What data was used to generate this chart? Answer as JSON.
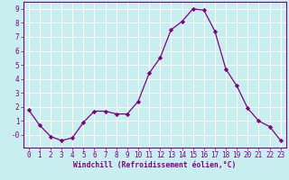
{
  "x": [
    0,
    1,
    2,
    3,
    4,
    5,
    6,
    7,
    8,
    9,
    10,
    11,
    12,
    13,
    14,
    15,
    16,
    17,
    18,
    19,
    20,
    21,
    22,
    23
  ],
  "y": [
    1.8,
    0.7,
    -0.1,
    -0.4,
    -0.2,
    0.9,
    1.7,
    1.7,
    1.5,
    1.5,
    2.4,
    4.4,
    5.5,
    7.5,
    8.1,
    9.0,
    8.9,
    7.4,
    4.7,
    3.5,
    1.9,
    1.0,
    0.6,
    -0.4
  ],
  "line_color": "#800080",
  "marker": "D",
  "marker_size": 2.2,
  "xlabel": "Windchill (Refroidissement éolien,°C)",
  "xlim": [
    -0.5,
    23.5
  ],
  "ylim": [
    -0.9,
    9.5
  ],
  "yticks": [
    0,
    1,
    2,
    3,
    4,
    5,
    6,
    7,
    8,
    9
  ],
  "ytick_labels": [
    "-0",
    "1",
    "2",
    "3",
    "4",
    "5",
    "6",
    "7",
    "8",
    "9"
  ],
  "xticks": [
    0,
    1,
    2,
    3,
    4,
    5,
    6,
    7,
    8,
    9,
    10,
    11,
    12,
    13,
    14,
    15,
    16,
    17,
    18,
    19,
    20,
    21,
    22,
    23
  ],
  "bg_color": "#c8eef0",
  "grid_color": "#ffffff",
  "tick_color": "#800080",
  "label_color": "#800080",
  "xlabel_fontsize": 5.8,
  "tick_fontsize": 5.5
}
